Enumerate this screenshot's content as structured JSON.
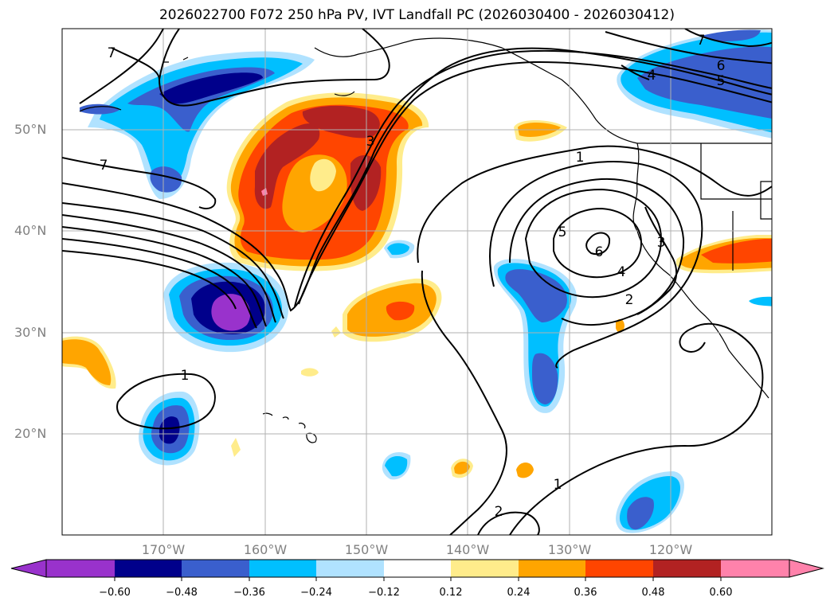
{
  "title": "2026022700 F072 250 hPa PV, IVT Landfall PC (2026030400 - 2026030412)",
  "lat_labels": [
    "50°N",
    "40°N",
    "30°N",
    "20°N"
  ],
  "lon_labels": [
    "170°W",
    "160°W",
    "150°W",
    "140°W",
    "130°W",
    "120°W"
  ],
  "contour_labels": [
    "7",
    "7",
    "6",
    "5",
    "4",
    "3",
    "1",
    "5",
    "6",
    "4",
    "3",
    "2",
    "1",
    "1",
    "2",
    "7"
  ],
  "colorbar": {
    "tick_labels": [
      "−0.60",
      "−0.48",
      "−0.36",
      "−0.24",
      "−0.12",
      "0.12",
      "0.24",
      "0.36",
      "0.48",
      "0.60"
    ],
    "colors": [
      "#9932cc",
      "#00008b",
      "#3a5fcd",
      "#00bfff",
      "#b0e2ff",
      "#ffffff",
      "#ffec8b",
      "#ffa500",
      "#ff4500",
      "#b22222",
      "#ff82ab"
    ]
  }
}
